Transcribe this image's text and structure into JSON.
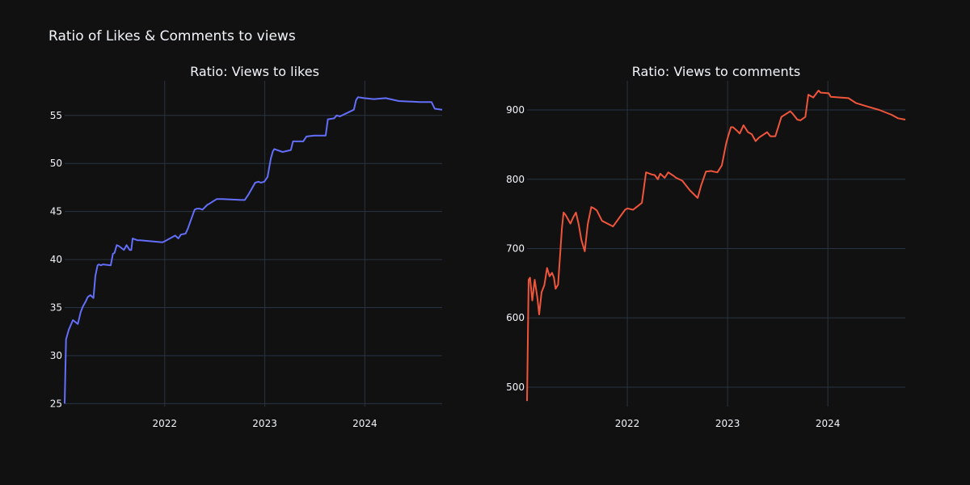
{
  "title": "Ratio of Likes & Comments to views",
  "chart_data": [
    {
      "type": "line",
      "title": "Ratio: Views to likes",
      "color": "#636efa",
      "xlim": [
        "2021-01-01",
        "2024-10-09"
      ],
      "ylim": [
        24.7,
        58.6
      ],
      "xticks": [
        "2022",
        "2023",
        "2024"
      ],
      "yticks": [
        25,
        30,
        35,
        40,
        45,
        50,
        55
      ],
      "grid": true,
      "series": [
        {
          "x": [
            "2021-01-01",
            "2021-01-06",
            "2021-01-16",
            "2021-01-31",
            "2021-02-18",
            "2021-02-28",
            "2021-03-08",
            "2021-03-18",
            "2021-03-26",
            "2021-04-05",
            "2021-04-16",
            "2021-04-23",
            "2021-05-01",
            "2021-05-06",
            "2021-05-13",
            "2021-05-21",
            "2021-06-18",
            "2021-06-26",
            "2021-07-02",
            "2021-07-10",
            "2021-07-18",
            "2021-08-05",
            "2021-08-15",
            "2021-08-26",
            "2021-09-01",
            "2021-09-06",
            "2021-09-15",
            "2021-09-24",
            "2021-10-03",
            "2021-12-24",
            "2022-01-01",
            "2022-02-08",
            "2022-02-20",
            "2022-03-01",
            "2022-03-18",
            "2022-03-26",
            "2022-04-20",
            "2022-04-29",
            "2022-05-08",
            "2022-05-19",
            "2022-06-05",
            "2022-06-12",
            "2022-07-10",
            "2022-07-19",
            "2022-07-30",
            "2022-10-07",
            "2022-10-20",
            "2022-11-03",
            "2022-11-27",
            "2022-12-09",
            "2022-12-18",
            "2022-12-30",
            "2023-01-11",
            "2023-01-23",
            "2023-01-31",
            "2023-02-05",
            "2023-03-07",
            "2023-04-06",
            "2023-04-14",
            "2023-05-21",
            "2023-06-02",
            "2023-06-30",
            "2023-08-11",
            "2023-08-19",
            "2023-09-11",
            "2023-09-20",
            "2023-10-02",
            "2023-11-22",
            "2023-11-30",
            "2023-12-07",
            "2023-12-29",
            "2024-02-03",
            "2024-03-17",
            "2024-05-04",
            "2024-07-19",
            "2024-08-31",
            "2024-09-12",
            "2024-10-09"
          ],
          "values": [
            25.0,
            31.7,
            32.7,
            33.7,
            33.3,
            34.5,
            35.1,
            35.6,
            36.1,
            36.3,
            36.0,
            38.3,
            39.4,
            39.5,
            39.4,
            39.5,
            39.4,
            40.6,
            40.7,
            41.5,
            41.4,
            41.0,
            41.5,
            41.0,
            41.0,
            42.2,
            42.1,
            42.0,
            42.0,
            41.8,
            41.9,
            42.5,
            42.2,
            42.6,
            42.7,
            43.2,
            45.2,
            45.3,
            45.3,
            45.2,
            45.7,
            45.8,
            46.3,
            46.3,
            46.3,
            46.2,
            46.2,
            46.8,
            48.0,
            48.1,
            48.0,
            48.1,
            48.6,
            50.5,
            51.3,
            51.5,
            51.2,
            51.4,
            52.3,
            52.3,
            52.8,
            52.9,
            52.9,
            54.6,
            54.7,
            55.0,
            54.9,
            55.6,
            56.6,
            56.9,
            56.8,
            56.7,
            56.8,
            56.5,
            56.4,
            56.4,
            55.7,
            55.6
          ]
        }
      ]
    },
    {
      "type": "line",
      "title": "Ratio: Views to comments",
      "color": "#ef553b",
      "xlim": [
        "2021-01-01",
        "2024-10-09"
      ],
      "ylim": [
        472,
        942
      ],
      "xticks": [
        "2022",
        "2023",
        "2024"
      ],
      "yticks": [
        500,
        600,
        700,
        800,
        900
      ],
      "grid": true,
      "series": [
        {
          "x": [
            "2021-01-01",
            "2021-01-07",
            "2021-01-12",
            "2021-01-20",
            "2021-01-29",
            "2021-02-08",
            "2021-02-14",
            "2021-02-23",
            "2021-03-05",
            "2021-03-15",
            "2021-03-24",
            "2021-04-02",
            "2021-04-09",
            "2021-04-15",
            "2021-04-24",
            "2021-05-08",
            "2021-05-14",
            "2021-05-22",
            "2021-06-08",
            "2021-06-18",
            "2021-06-28",
            "2021-07-08",
            "2021-07-18",
            "2021-07-30",
            "2021-08-10",
            "2021-08-23",
            "2021-09-02",
            "2021-09-12",
            "2021-10-01",
            "2021-11-10",
            "2021-12-24",
            "2022-01-01",
            "2022-01-22",
            "2022-02-04",
            "2022-02-23",
            "2022-03-10",
            "2022-03-31",
            "2022-04-11",
            "2022-04-22",
            "2022-05-01",
            "2022-05-17",
            "2022-05-30",
            "2022-06-18",
            "2022-06-28",
            "2022-07-20",
            "2022-08-17",
            "2022-09-14",
            "2022-09-26",
            "2022-10-14",
            "2022-11-03",
            "2022-11-11",
            "2022-11-25",
            "2022-12-11",
            "2022-12-27",
            "2023-01-03",
            "2023-01-13",
            "2023-01-21",
            "2023-02-04",
            "2023-02-14",
            "2023-02-28",
            "2023-03-16",
            "2023-03-30",
            "2023-04-13",
            "2023-04-25",
            "2023-05-25",
            "2023-06-06",
            "2023-06-24",
            "2023-07-16",
            "2023-08-17",
            "2023-08-25",
            "2023-09-12",
            "2023-09-23",
            "2023-10-11",
            "2023-10-22",
            "2023-11-09",
            "2023-11-28",
            "2023-12-06",
            "2024-01-04",
            "2024-01-11",
            "2024-03-16",
            "2024-04-12",
            "2024-05-23",
            "2024-07-06",
            "2024-08-20",
            "2024-09-12",
            "2024-10-09"
          ],
          "values": [
            480,
            655,
            658,
            625,
            655,
            628,
            605,
            637,
            647,
            672,
            660,
            665,
            658,
            642,
            648,
            730,
            752,
            748,
            736,
            745,
            752,
            735,
            712,
            696,
            735,
            760,
            758,
            755,
            740,
            732,
            756,
            758,
            756,
            760,
            766,
            810,
            807,
            806,
            800,
            808,
            802,
            810,
            805,
            802,
            798,
            784,
            773,
            790,
            811,
            812,
            811,
            810,
            820,
            852,
            862,
            875,
            875,
            870,
            866,
            878,
            868,
            865,
            855,
            860,
            868,
            862,
            862,
            890,
            898,
            895,
            886,
            885,
            890,
            922,
            918,
            928,
            925,
            924,
            919,
            917,
            910,
            905,
            900,
            893,
            888,
            886
          ]
        }
      ]
    }
  ]
}
